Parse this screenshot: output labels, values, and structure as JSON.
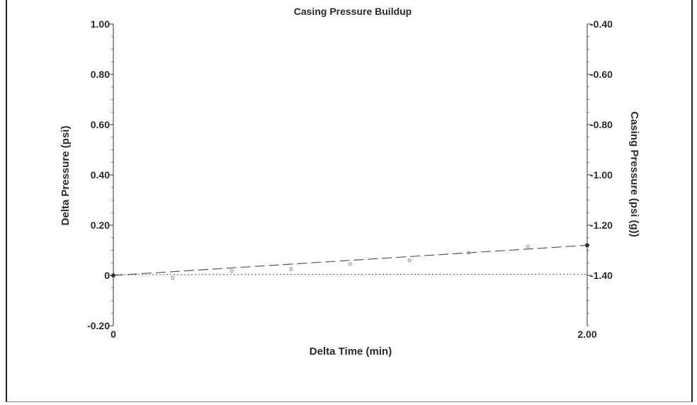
{
  "chart_data": {
    "type": "scatter",
    "title": "Casing Pressure Buildup",
    "xlabel": "Delta Time (min)",
    "ylabel": "Delta Pressure (psi)",
    "y2label": "Casing Pressure (psi (g))",
    "xlim": [
      0,
      2.0
    ],
    "ylim": [
      -0.2,
      1.0
    ],
    "y2lim": [
      -1.6,
      -0.4
    ],
    "x_tick_labels": [
      "0",
      "2.00"
    ],
    "x_ticks": [
      0,
      2.0
    ],
    "y_tick_labels": [
      "-0.20",
      "0",
      "0.20",
      "0.40",
      "0.60",
      "0.80",
      "1.00"
    ],
    "y_ticks": [
      -0.2,
      0,
      0.2,
      0.4,
      0.6,
      0.8,
      1.0
    ],
    "y2_tick_labels": [
      "-1.40",
      "-1.20",
      "-1.00",
      "-0.80",
      "-0.60",
      "-0.40"
    ],
    "y2_ticks": [
      -1.4,
      -1.2,
      -1.0,
      -0.8,
      -0.6,
      -0.4
    ],
    "grid": false,
    "points": {
      "x": [
        0,
        0.25,
        0.5,
        0.75,
        1.0,
        1.25,
        1.5,
        1.75,
        2.0
      ],
      "y": [
        0,
        -0.01,
        0.018,
        0.025,
        0.045,
        0.06,
        0.09,
        0.115,
        0.12
      ]
    },
    "trend_line": {
      "x": [
        0,
        2.0
      ],
      "y": [
        0,
        0.12
      ]
    },
    "baseline": {
      "x": [
        0,
        2.0
      ],
      "y": [
        0.003,
        0.005
      ]
    },
    "colors": {
      "points": "#888888",
      "lines": "#555555",
      "axes": "#333333"
    }
  }
}
